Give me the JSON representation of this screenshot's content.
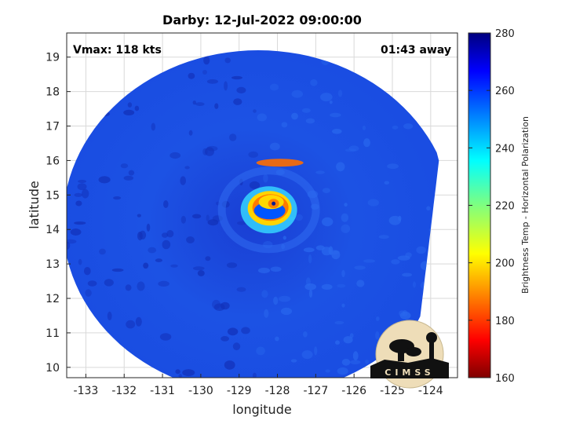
{
  "chart_data": {
    "type": "heatmap",
    "title": "Darby: 12-Jul-2022 09:00:00",
    "xlabel": "longitude",
    "ylabel": "latitude",
    "xlim": [
      -133.5,
      -123.3
    ],
    "ylim": [
      9.7,
      19.7
    ],
    "x_ticks": [
      -133,
      -132,
      -131,
      -130,
      -129,
      -128,
      -127,
      -126,
      -125,
      -124
    ],
    "y_ticks": [
      10,
      11,
      12,
      13,
      14,
      15,
      16,
      17,
      18,
      19
    ],
    "grid": true,
    "annotations": {
      "vmax": "Vmax: 118 kts",
      "time_away": "01:43 away"
    },
    "colorbar": {
      "label": "Brightness Temp - Horizontal Polarization",
      "range": [
        160,
        280
      ],
      "ticks": [
        160,
        180,
        200,
        220,
        240,
        260,
        280
      ],
      "colormap": "jet"
    },
    "storm_center": {
      "lon": -128.1,
      "lat": 14.75
    },
    "swath": {
      "center_lon": -128.5,
      "center_lat": 14.2,
      "radius_deg": 5.0
    },
    "features": [
      {
        "name": "background",
        "value": 262
      },
      {
        "name": "rainband",
        "value": 252
      },
      {
        "name": "eyewall",
        "value": 185
      },
      {
        "name": "eye",
        "value": 250
      }
    ],
    "logo_text": "CIMSS",
    "colors": {
      "background_fill": "#1c55e6",
      "eyewall": "#ff2a00"
    }
  }
}
